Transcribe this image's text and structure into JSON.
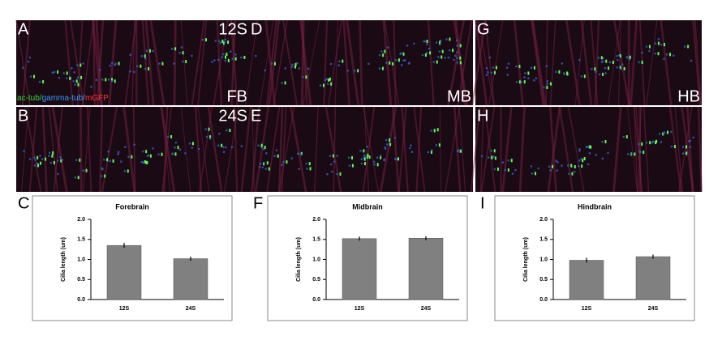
{
  "image_rows": [
    {
      "stage": "12S",
      "panels": [
        "A",
        "D",
        "G"
      ]
    },
    {
      "stage": "24S",
      "panels": [
        "B",
        "E",
        "H"
      ]
    }
  ],
  "regions": [
    "FB",
    "MB",
    "HB"
  ],
  "channel_legend": [
    {
      "text": "ac-tub/",
      "color": "#33dd33"
    },
    {
      "text": "gamma-tub/",
      "color": "#3399ff"
    },
    {
      "text": "mGFP",
      "color": "#ff3333"
    }
  ],
  "chart_data": [
    {
      "type": "bar",
      "panel_label": "C",
      "title": "Forebrain",
      "y_label": "Cilia length (um)",
      "categories": [
        "12S",
        "24S"
      ],
      "values": [
        1.35,
        1.02
      ],
      "errors": [
        0.06,
        0.05
      ],
      "color": "#808080",
      "ylim": [
        0,
        2
      ],
      "yticks": [
        {
          "value": 0,
          "label": "0.0"
        },
        {
          "value": 0.5,
          "label": "0.5"
        },
        {
          "value": 1,
          "label": "1.0"
        },
        {
          "value": 1.5,
          "label": "1.5"
        },
        {
          "value": 2,
          "label": "2.0"
        }
      ]
    },
    {
      "type": "bar",
      "panel_label": "F",
      "title": "Midbrain",
      "y_label": "Cilia length (um)",
      "categories": [
        "12S",
        "24S"
      ],
      "values": [
        1.52,
        1.53
      ],
      "errors": [
        0.05,
        0.05
      ],
      "color": "#808080",
      "ylim": [
        0,
        2
      ],
      "yticks": [
        {
          "value": 0,
          "label": "0.0"
        },
        {
          "value": 0.5,
          "label": "0.5"
        },
        {
          "value": 1,
          "label": "1.0"
        },
        {
          "value": 1.5,
          "label": "1.5"
        },
        {
          "value": 2,
          "label": "2.0"
        }
      ]
    },
    {
      "type": "bar",
      "panel_label": "I",
      "title": "Hindbrain",
      "y_label": "Cilia length (um)",
      "categories": [
        "12S",
        "24S"
      ],
      "values": [
        0.98,
        1.07
      ],
      "errors": [
        0.06,
        0.05
      ],
      "color": "#808080",
      "ylim": [
        0,
        2
      ],
      "yticks": [
        {
          "value": 0,
          "label": "0.0"
        },
        {
          "value": 0.5,
          "label": "0.5"
        },
        {
          "value": 1,
          "label": "1.0"
        },
        {
          "value": 1.5,
          "label": "1.5"
        },
        {
          "value": 2,
          "label": "2.0"
        }
      ]
    }
  ]
}
